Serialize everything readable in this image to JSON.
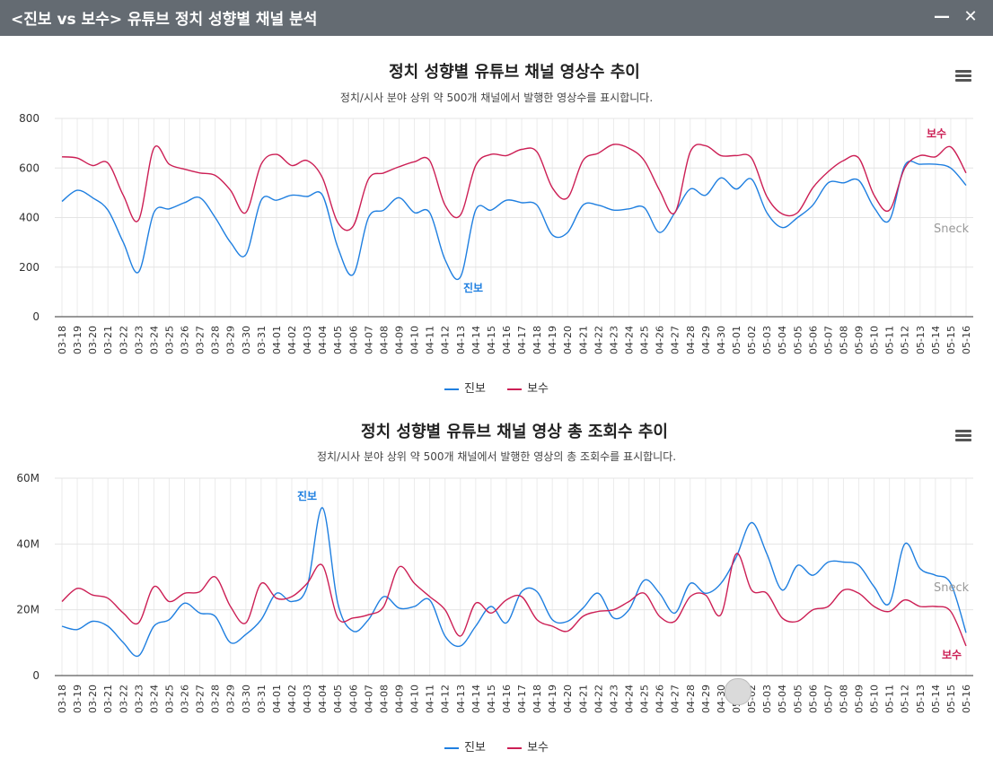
{
  "window": {
    "title": "<진보 vs 보수> 유튜브 정치 성향별 채널 분석",
    "minimize_icon": "minimize-icon",
    "close_icon": "close-icon"
  },
  "colors": {
    "progressive": "#1f7fe0",
    "conservative": "#cc1f55",
    "titlebar": "#646b72"
  },
  "watermark": "Sneck",
  "chart_data": [
    {
      "type": "line",
      "title": "정치 성향별 유튜브 채널 영상수 추이",
      "subtitle": "정치/시사 분야 상위 약 500개 채널에서 발행한 영상수를 표시합니다.",
      "xlabel": "",
      "ylabel": "",
      "ylim": [
        0,
        800
      ],
      "yticks": [
        "0",
        "200",
        "400",
        "600",
        "800"
      ],
      "categories": [
        "03-18",
        "03-19",
        "03-20",
        "03-21",
        "03-22",
        "03-23",
        "03-24",
        "03-25",
        "03-26",
        "03-27",
        "03-28",
        "03-29",
        "03-30",
        "03-31",
        "04-01",
        "04-02",
        "04-03",
        "04-04",
        "04-05",
        "04-06",
        "04-07",
        "04-08",
        "04-09",
        "04-10",
        "04-11",
        "04-12",
        "04-13",
        "04-14",
        "04-15",
        "04-16",
        "04-17",
        "04-18",
        "04-19",
        "04-20",
        "04-21",
        "04-22",
        "04-23",
        "04-24",
        "04-25",
        "04-26",
        "04-27",
        "04-28",
        "04-29",
        "04-30",
        "05-01",
        "05-02",
        "05-03",
        "05-04",
        "05-05",
        "05-06",
        "05-07",
        "05-08",
        "05-09",
        "05-10",
        "05-11",
        "05-12",
        "05-13",
        "05-14",
        "05-15",
        "05-16"
      ],
      "series": [
        {
          "name": "진보",
          "values": [
            465,
            510,
            480,
            430,
            300,
            180,
            420,
            435,
            460,
            480,
            400,
            300,
            250,
            470,
            470,
            490,
            485,
            490,
            280,
            170,
            400,
            430,
            480,
            420,
            420,
            230,
            160,
            430,
            430,
            470,
            460,
            450,
            330,
            340,
            450,
            450,
            430,
            435,
            440,
            340,
            420,
            515,
            490,
            560,
            515,
            555,
            420,
            360,
            400,
            450,
            540,
            540,
            550,
            440,
            390,
            610,
            615,
            615,
            600,
            530
          ]
        },
        {
          "name": "보수",
          "values": [
            645,
            640,
            610,
            620,
            490,
            390,
            680,
            615,
            595,
            580,
            570,
            510,
            420,
            615,
            655,
            610,
            630,
            560,
            380,
            365,
            555,
            580,
            605,
            625,
            630,
            450,
            410,
            610,
            655,
            650,
            675,
            665,
            520,
            480,
            630,
            660,
            695,
            680,
            630,
            510,
            420,
            665,
            690,
            650,
            650,
            640,
            485,
            415,
            420,
            520,
            585,
            630,
            640,
            490,
            430,
            600,
            650,
            645,
            685,
            580
          ]
        }
      ],
      "annotations": [
        {
          "text": "진보",
          "series": 0
        },
        {
          "text": "보수",
          "series": 1
        }
      ]
    },
    {
      "type": "line",
      "title": "정치 성향별 유튜브 채널 영상 총 조회수 추이",
      "subtitle": "정치/시사 분야 상위 약 500개 채널에서 발행한 영상의 총 조회수를 표시합니다.",
      "xlabel": "",
      "ylabel": "",
      "ylim": [
        0,
        60
      ],
      "yticks": [
        "0",
        "20M",
        "40M",
        "60M"
      ],
      "categories": [
        "03-18",
        "03-19",
        "03-20",
        "03-21",
        "03-22",
        "03-23",
        "03-24",
        "03-25",
        "03-26",
        "03-27",
        "03-28",
        "03-29",
        "03-30",
        "03-31",
        "04-01",
        "04-02",
        "04-03",
        "04-04",
        "04-05",
        "04-06",
        "04-07",
        "04-08",
        "04-09",
        "04-10",
        "04-11",
        "04-12",
        "04-13",
        "04-14",
        "04-15",
        "04-16",
        "04-17",
        "04-18",
        "04-19",
        "04-20",
        "04-21",
        "04-22",
        "04-23",
        "04-24",
        "04-25",
        "04-26",
        "04-27",
        "04-28",
        "04-29",
        "04-30",
        "05-01",
        "05-02",
        "05-03",
        "05-04",
        "05-05",
        "05-06",
        "05-07",
        "05-08",
        "05-09",
        "05-10",
        "05-11",
        "05-12",
        "05-13",
        "05-14",
        "05-15",
        "05-16"
      ],
      "series": [
        {
          "name": "진보",
          "values": [
            15,
            14,
            16.5,
            15,
            10,
            6,
            15,
            17,
            22,
            19,
            18,
            10,
            12.5,
            17,
            25,
            22.5,
            27,
            51,
            22,
            13.5,
            17,
            24,
            20.5,
            21,
            23,
            12,
            9,
            15,
            21,
            16,
            25.5,
            25.5,
            17,
            16.5,
            20.5,
            25,
            17.5,
            20,
            29,
            25,
            19,
            28,
            25,
            28,
            36,
            46.5,
            37,
            26,
            33.5,
            30.5,
            34.5,
            34.5,
            33.5,
            27,
            22,
            40,
            32.5,
            30.5,
            28,
            13
          ]
        },
        {
          "name": "보수",
          "values": [
            22.5,
            26.5,
            24.5,
            23.5,
            19,
            16,
            27,
            22.5,
            25,
            25.5,
            30,
            21,
            16,
            28,
            23.5,
            24,
            28,
            33.5,
            17.5,
            17.5,
            18.5,
            21,
            33,
            28,
            24,
            20,
            12,
            22,
            19,
            23,
            24,
            17,
            15,
            13.5,
            18,
            19.5,
            20,
            22.5,
            25,
            18,
            16.5,
            24,
            24.5,
            18.5,
            37,
            26,
            25,
            17.5,
            16.5,
            20,
            21,
            26,
            25,
            21,
            19.5,
            23,
            21,
            21,
            19.5,
            9
          ]
        }
      ],
      "annotations": [
        {
          "text": "진보",
          "series": 0
        },
        {
          "text": "보수",
          "series": 1
        }
      ]
    }
  ]
}
